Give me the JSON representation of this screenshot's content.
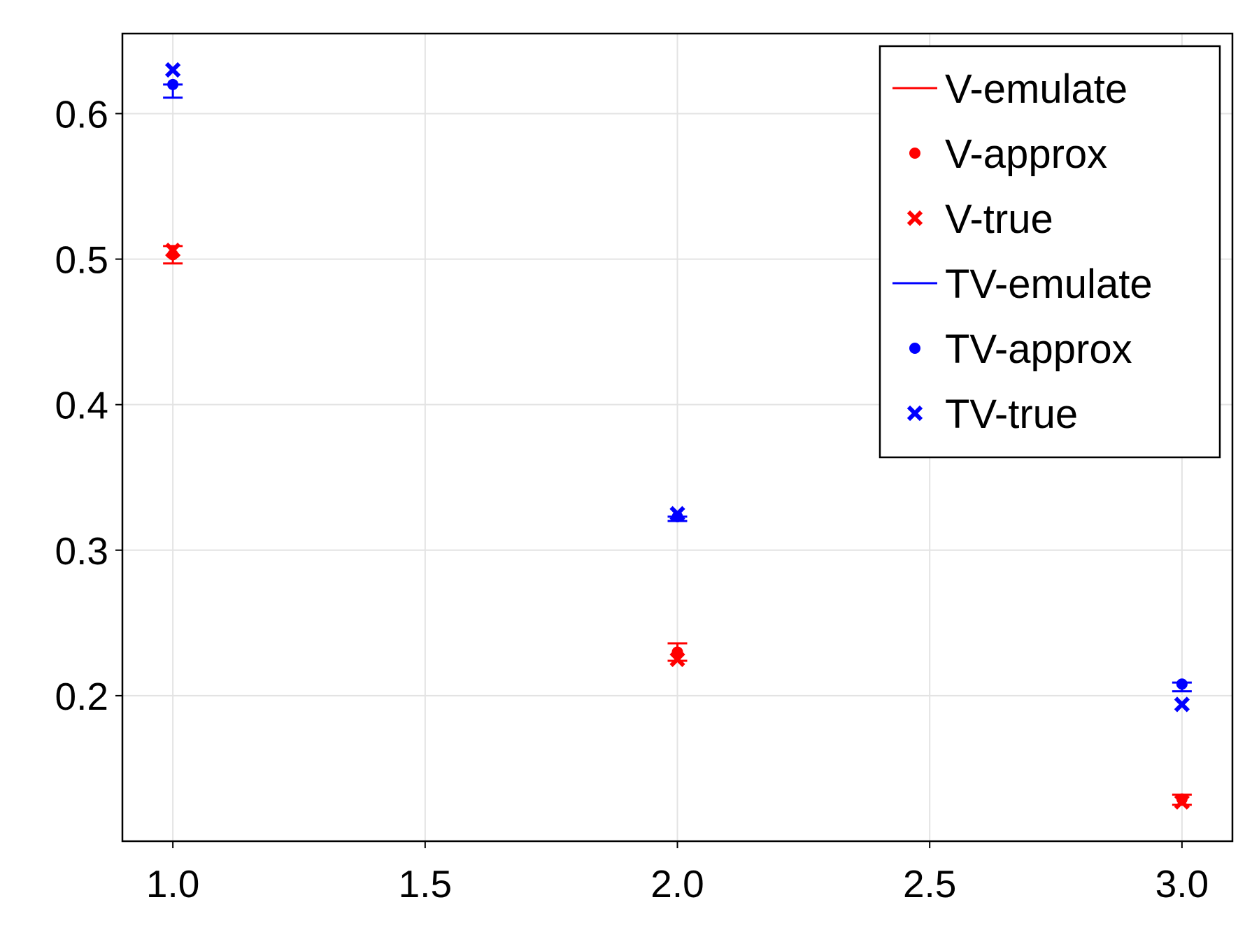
{
  "chart_data": {
    "type": "scatter",
    "title": "",
    "xlabel": "",
    "ylabel": "",
    "xlim": [
      0.9,
      3.1
    ],
    "ylim": [
      0.1,
      0.655
    ],
    "grid": true,
    "legend_position": "top-right",
    "x_ticks": [
      1.0,
      1.5,
      2.0,
      2.5,
      3.0
    ],
    "x_tick_labels": [
      "1.0",
      "1.5",
      "2.0",
      "2.5",
      "3.0"
    ],
    "y_ticks": [
      0.2,
      0.3,
      0.4,
      0.5,
      0.6
    ],
    "y_tick_labels": [
      "0.2",
      "0.3",
      "0.4",
      "0.5",
      "0.6"
    ],
    "x": [
      1.0,
      2.0,
      3.0
    ],
    "series": [
      {
        "name": "V-emulate",
        "kind": "errorbar",
        "color": "#ff0000",
        "x": [
          1.0,
          2.0,
          3.0
        ],
        "low": [
          0.497,
          0.224,
          0.125
        ],
        "high": [
          0.509,
          0.236,
          0.132
        ]
      },
      {
        "name": "V-approx",
        "kind": "point",
        "color": "#ff0000",
        "x": [
          1.0,
          2.0,
          3.0
        ],
        "values": [
          0.503,
          0.23,
          0.129
        ]
      },
      {
        "name": "V-true",
        "kind": "cross",
        "color": "#ff0000",
        "x": [
          1.0,
          2.0,
          3.0
        ],
        "values": [
          0.506,
          0.225,
          0.127
        ]
      },
      {
        "name": "TV-emulate",
        "kind": "errorbar",
        "color": "#0000ff",
        "x": [
          1.0,
          2.0,
          3.0
        ],
        "low": [
          0.611,
          0.32,
          0.203
        ],
        "high": [
          0.62,
          0.323,
          0.209
        ]
      },
      {
        "name": "TV-approx",
        "kind": "point",
        "color": "#0000ff",
        "x": [
          1.0,
          2.0,
          3.0
        ],
        "values": [
          0.62,
          0.323,
          0.208
        ]
      },
      {
        "name": "TV-true",
        "kind": "cross",
        "color": "#0000ff",
        "x": [
          1.0,
          2.0,
          3.0
        ],
        "values": [
          0.63,
          0.325,
          0.194
        ]
      }
    ],
    "legend": [
      "V-emulate",
      "V-approx",
      "V-true",
      "TV-emulate",
      "TV-approx",
      "TV-true"
    ]
  }
}
